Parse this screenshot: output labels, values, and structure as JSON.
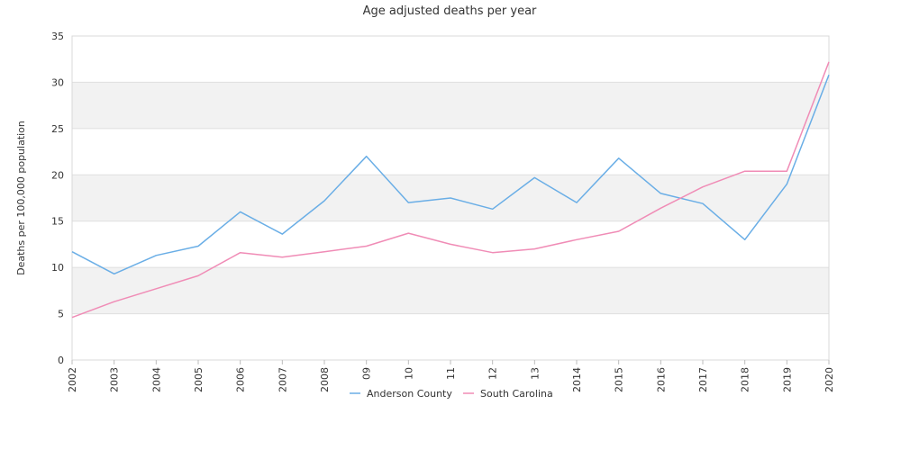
{
  "chart_data": {
    "type": "line",
    "title": "Age adjusted deaths per year",
    "xlabel": "",
    "ylabel": "Deaths per 100,000 population",
    "ylim": [
      0,
      35
    ],
    "yticks": [
      0,
      5,
      10,
      15,
      20,
      25,
      30,
      35
    ],
    "categories": [
      "2002",
      "2003",
      "2004",
      "2005",
      "2006",
      "2007",
      "2008",
      "09",
      "10",
      "11",
      "12",
      "13",
      "2014",
      "2015",
      "2016",
      "2017",
      "2018",
      "2019",
      "2020"
    ],
    "grid": "alternating horizontal bands",
    "legend_position": "bottom",
    "series": [
      {
        "name": "Anderson County",
        "color": "#6aaee6",
        "values": [
          11.7,
          9.3,
          11.3,
          12.3,
          16.0,
          13.6,
          17.2,
          22.0,
          17.0,
          17.5,
          16.3,
          19.7,
          17.0,
          21.8,
          18.0,
          16.9,
          13.0,
          19.0,
          30.8
        ]
      },
      {
        "name": "South Carolina",
        "color": "#f08cb6",
        "values": [
          4.6,
          6.3,
          7.7,
          9.1,
          11.6,
          11.1,
          11.7,
          12.3,
          13.7,
          12.5,
          11.6,
          12.0,
          13.0,
          13.9,
          16.4,
          18.7,
          20.4,
          20.4,
          32.2
        ]
      }
    ]
  }
}
